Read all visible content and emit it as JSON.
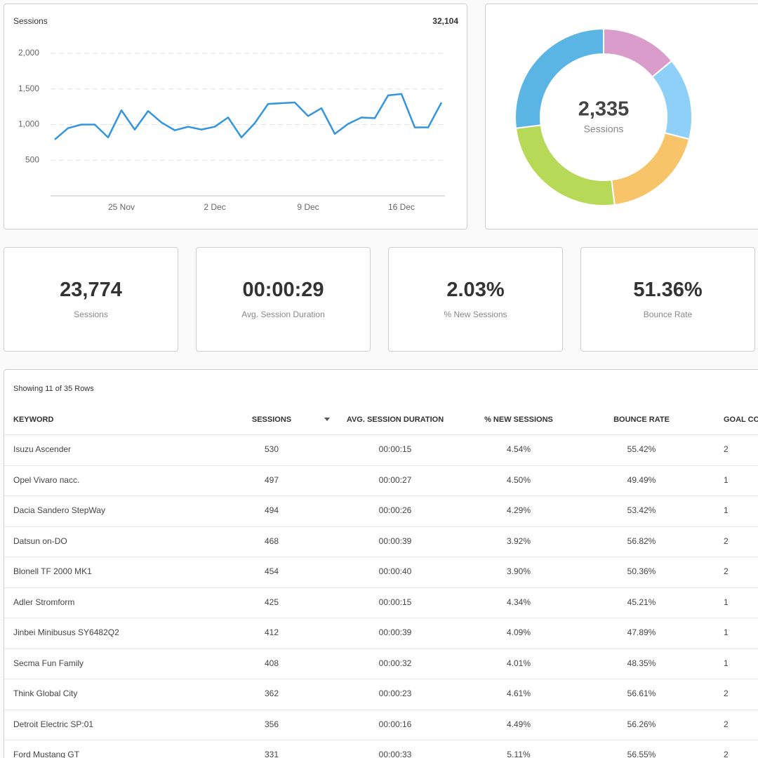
{
  "chart_data": [
    {
      "type": "line",
      "title": "Sessions",
      "summary_value": "32,104",
      "categories": [
        null,
        null,
        null,
        null,
        null,
        "25 Nov",
        null,
        null,
        null,
        null,
        null,
        null,
        "2 Dec",
        null,
        null,
        null,
        null,
        null,
        null,
        "9 Dec",
        null,
        null,
        null,
        null,
        null,
        null,
        "16 Dec",
        null,
        null,
        null
      ],
      "values": [
        790,
        950,
        1000,
        1000,
        820,
        1200,
        930,
        1190,
        1030,
        920,
        970,
        930,
        970,
        1100,
        820,
        1020,
        1290,
        1300,
        1310,
        1120,
        1230,
        870,
        1010,
        1100,
        1090,
        1410,
        1430,
        960,
        960,
        1310
      ],
      "color": "#3395dd",
      "ylim": [
        0,
        2000
      ],
      "yticks": [
        500,
        {
          "value": 1000,
          "label": "1,000"
        },
        {
          "value": 1500,
          "label": "1,500"
        },
        {
          "value": 2000,
          "label": "2,000"
        }
      ],
      "grid": true
    },
    {
      "type": "donut",
      "center_value": "2,335",
      "center_label": "Sessions",
      "values": [
        14,
        15,
        19,
        25,
        27
      ],
      "colors": [
        "#d99ccb",
        "#8ed0f8",
        "#f8c469",
        "#b6d957",
        "#5bb5e4"
      ]
    }
  ],
  "kpis": [
    {
      "value": "23,774",
      "label": "Sessions"
    },
    {
      "value": "00:00:29",
      "label": "Avg. Session Duration"
    },
    {
      "value": "2.03%",
      "label": "% New Sessions"
    },
    {
      "value": "51.36%",
      "label": "Bounce Rate"
    }
  ],
  "table": {
    "caption": "Showing 11 of 35 Rows",
    "columns": [
      "KEYWORD",
      "SESSIONS",
      "AVG. SESSION DURATION",
      "% NEW SESSIONS",
      "BOUNCE RATE",
      "GOAL CO"
    ],
    "rows": [
      [
        "Isuzu Ascender",
        "530",
        "00:00:15",
        "4.54%",
        "55.42%",
        "2"
      ],
      [
        "Opel Vivaro пасс.",
        "497",
        "00:00:27",
        "4.50%",
        "49.49%",
        "1"
      ],
      [
        "Dacia Sandero StepWay",
        "494",
        "00:00:26",
        "4.29%",
        "53.42%",
        "1"
      ],
      [
        "Datsun on-DO",
        "468",
        "00:00:39",
        "3.92%",
        "56.82%",
        "2"
      ],
      [
        "Blonell TF 2000 MK1",
        "454",
        "00:00:40",
        "3.90%",
        "50.36%",
        "2"
      ],
      [
        "Adler Stromform",
        "425",
        "00:00:15",
        "4.34%",
        "45.21%",
        "1"
      ],
      [
        "Jinbei Minibusus SY6482Q2",
        "412",
        "00:00:39",
        "4.09%",
        "47.89%",
        "1"
      ],
      [
        "Secma Fun Family",
        "408",
        "00:00:32",
        "4.01%",
        "48.35%",
        "1"
      ],
      [
        "Think Global City",
        "362",
        "00:00:23",
        "4.61%",
        "56.61%",
        "2"
      ],
      [
        "Detroit Electric SP:01",
        "356",
        "00:00:16",
        "4.49%",
        "56.26%",
        "2"
      ],
      [
        "Ford Mustang GT",
        "331",
        "00:00:33",
        "5.11%",
        "56.55%",
        "2"
      ]
    ]
  }
}
